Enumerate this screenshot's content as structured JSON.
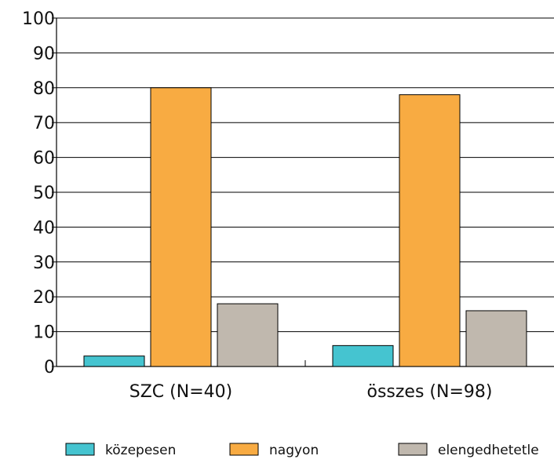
{
  "chart_data": {
    "type": "bar",
    "categories": [
      "SZC (N=40)",
      "összes (N=98)"
    ],
    "series": [
      {
        "name": "közepesen",
        "values": [
          3,
          6
        ],
        "color": "#45c4d0"
      },
      {
        "name": "nagyon",
        "values": [
          80,
          78
        ],
        "color": "#f8ab42"
      },
      {
        "name": "elengedhetetle",
        "values": [
          18,
          16
        ],
        "color": "#c0b8ae"
      }
    ],
    "ylim": [
      0,
      100
    ],
    "yticks": [
      "0",
      "10",
      "20",
      "30",
      "40",
      "50",
      "60",
      "70",
      "80",
      "90",
      "100"
    ],
    "grid": true,
    "legend_position": "bottom",
    "title": "",
    "xlabel": "",
    "ylabel": ""
  }
}
